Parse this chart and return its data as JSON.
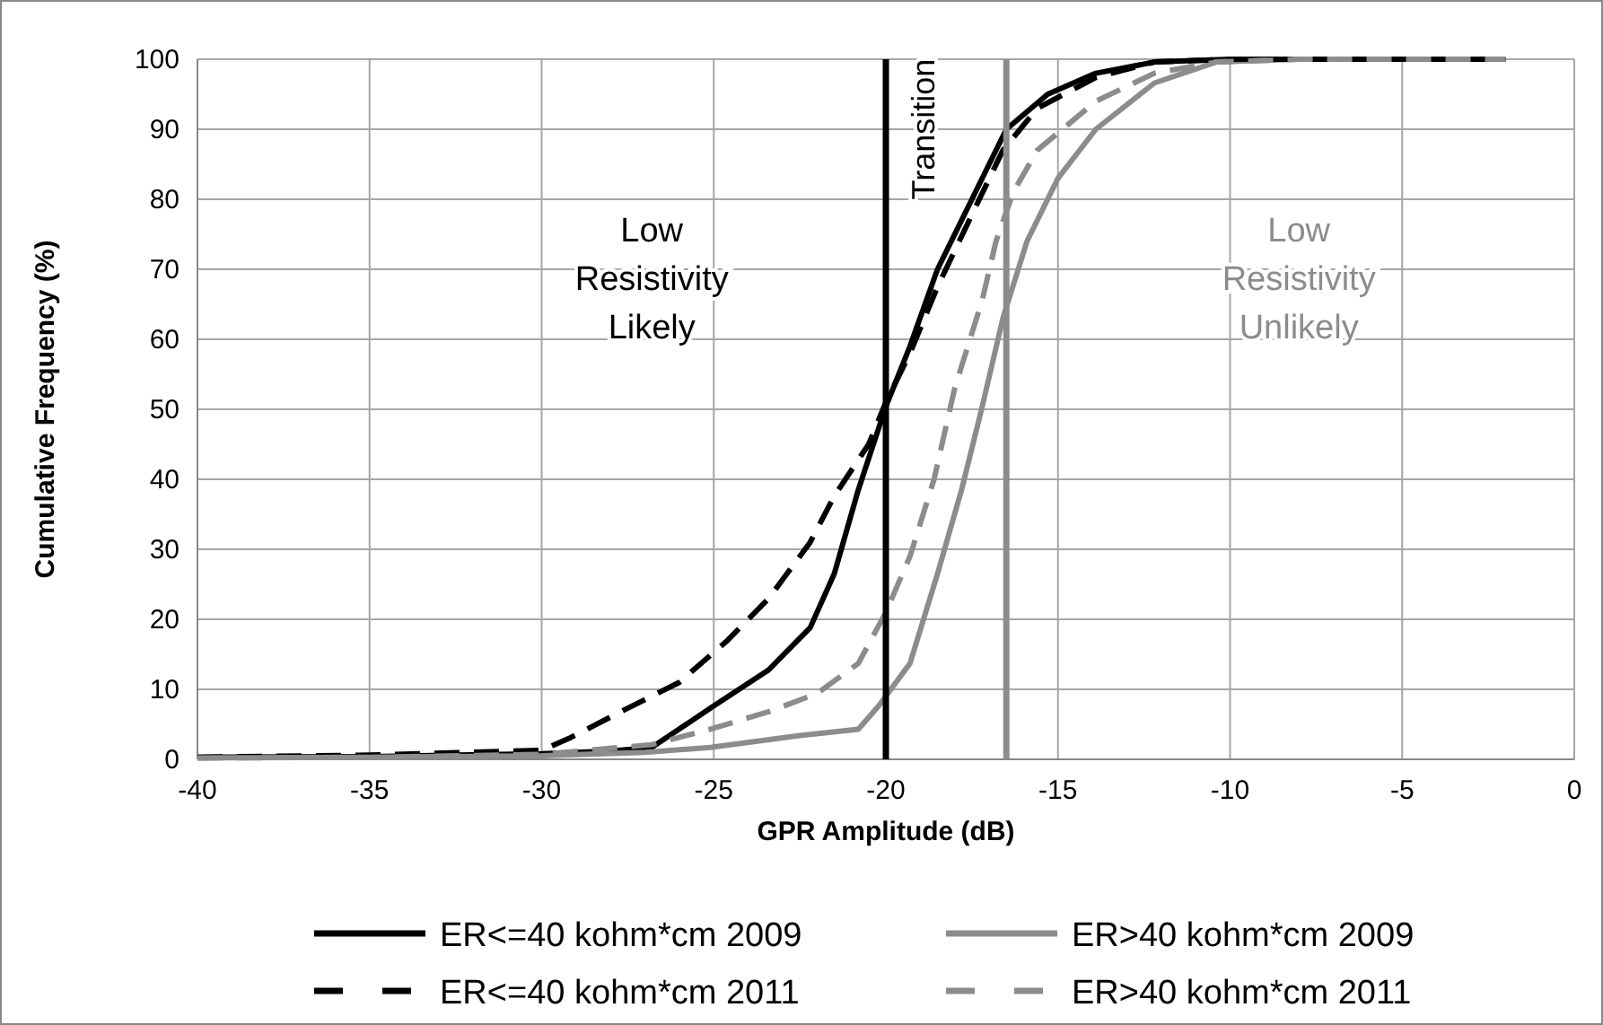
{
  "chart_data": {
    "type": "line",
    "xlabel": "GPR Amplitude (dB)",
    "ylabel": "Cumulative Frequency (%)",
    "xlim": [
      -40,
      0
    ],
    "xticks": [
      -40,
      -35,
      -30,
      -25,
      -20,
      -15,
      -10,
      -5,
      0
    ],
    "ylim": [
      0,
      100
    ],
    "yticks": [
      0,
      10,
      20,
      30,
      40,
      50,
      60,
      70,
      80,
      90,
      100
    ],
    "grid": true,
    "legend": "bottom",
    "series": [
      {
        "name": "ER<=40 kohm*cm 2009",
        "color": "#000000",
        "line_style": "solid",
        "x": [
          -40,
          -35,
          -30,
          -28,
          -26.8,
          -25.1,
          -23.4,
          -22.2,
          -21.5,
          -20.8,
          -20,
          -19.3,
          -18.5,
          -17.5,
          -16.5,
          -15.3,
          -13.9,
          -12.2,
          -10,
          -2
        ],
        "values": [
          0.3,
          0.4,
          0.8,
          1.2,
          1.7,
          7.3,
          12.8,
          18.8,
          26.5,
          38.5,
          50.4,
          59,
          70,
          80,
          90,
          95,
          98,
          99.6,
          100,
          100
        ]
      },
      {
        "name": "ER>40 kohm*cm 2009",
        "color": "#8c8c8c",
        "line_style": "solid",
        "x": [
          -40,
          -35,
          -30,
          -27,
          -25.1,
          -22.5,
          -20.8,
          -20.2,
          -19.3,
          -18.5,
          -17.8,
          -17.2,
          -16.6,
          -15.9,
          -15,
          -13.9,
          -12.2,
          -10.4,
          -8,
          -2
        ],
        "values": [
          0.2,
          0.3,
          0.5,
          1,
          1.7,
          3.4,
          4.3,
          7.7,
          13.7,
          26.5,
          38.5,
          50.4,
          63,
          74,
          83,
          90,
          96.6,
          99.6,
          100,
          100
        ]
      },
      {
        "name": "ER<=40 kohm*cm 2011",
        "color": "#000000",
        "line_style": "dashed",
        "x": [
          -40,
          -35,
          -30,
          -29.2,
          -27.7,
          -26,
          -24.6,
          -23.4,
          -22.2,
          -21.5,
          -20.5,
          -20,
          -19.3,
          -18.5,
          -17.5,
          -16.6,
          -15.6,
          -13.9,
          -12.2,
          -10,
          -2
        ],
        "values": [
          0.3,
          0.6,
          1.3,
          3,
          6.8,
          11,
          17,
          23,
          31,
          37.6,
          45,
          51,
          58,
          67.5,
          77.8,
          87,
          93,
          97.4,
          99.6,
          100,
          100
        ]
      },
      {
        "name": "ER>40 kohm*cm 2011",
        "color": "#8c8c8c",
        "line_style": "dashed",
        "x": [
          -40,
          -35,
          -30,
          -26.8,
          -25.1,
          -23.4,
          -22,
          -20.8,
          -20,
          -19.3,
          -18.6,
          -18,
          -17.2,
          -16.8,
          -16.3,
          -15.6,
          -13.9,
          -12.2,
          -10.4,
          -8,
          -2
        ],
        "values": [
          0.2,
          0.3,
          0.7,
          2.1,
          4.3,
          6.8,
          9.4,
          13.7,
          21,
          29,
          40,
          53,
          65.6,
          74,
          81,
          87,
          94,
          98,
          99.6,
          100,
          100
        ]
      }
    ],
    "ref_lines": [
      {
        "axis": "x",
        "value": -20,
        "color": "#000000"
      },
      {
        "axis": "x",
        "value": -16.5,
        "color": "#8c8c8c"
      }
    ],
    "annotations": [
      "Low\nResistivity\nLikely",
      "Transition",
      "Low\nResistivity\nUnlikely"
    ]
  }
}
